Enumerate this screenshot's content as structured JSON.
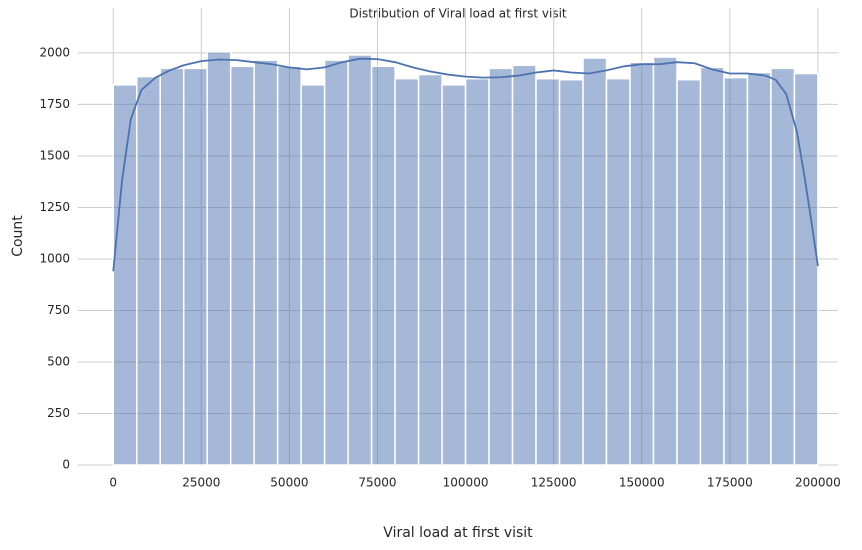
{
  "chart_data": {
    "type": "histogram",
    "title": "Distribution of Viral load at first visit",
    "x_label": "Viral load at first visit",
    "y_label": "Count",
    "bins": [
      0,
      6666.67,
      13333.33,
      20000,
      26666.67,
      33333.33,
      40000,
      46666.67,
      53333.33,
      60000,
      66666.67,
      73333.33,
      80000,
      86666.67,
      93333.33,
      100000,
      106666.67,
      113333.33,
      120000,
      126666.67,
      133333.33,
      140000,
      146666.67,
      153333.33,
      160000,
      166666.67,
      173333.33,
      180000,
      186666.67,
      193333.33,
      200000
    ],
    "values": [
      1845,
      1885,
      1925,
      1925,
      2005,
      1935,
      1965,
      1935,
      1845,
      1965,
      1990,
      1935,
      1875,
      1895,
      1845,
      1875,
      1925,
      1940,
      1875,
      1870,
      1975,
      1875,
      1955,
      1980,
      1870,
      1930,
      1880,
      1905,
      1925,
      1900
    ],
    "color": "#4c72b0",
    "bar_opacity": 0.5,
    "kde": {
      "color": "#4c72b0",
      "x": [
        0,
        2500,
        5000,
        8000,
        12000,
        16000,
        20000,
        25000,
        30000,
        35000,
        40000,
        45000,
        50000,
        55000,
        60000,
        65000,
        70000,
        75000,
        80000,
        85000,
        90000,
        95000,
        100000,
        105000,
        110000,
        115000,
        120000,
        125000,
        130000,
        135000,
        140000,
        145000,
        150000,
        155000,
        160000,
        165000,
        170000,
        175000,
        180000,
        185000,
        188000,
        191000,
        194000,
        196000,
        198000,
        200000
      ],
      "y": [
        940,
        1380,
        1680,
        1820,
        1880,
        1915,
        1940,
        1960,
        1968,
        1965,
        1955,
        1945,
        1930,
        1920,
        1930,
        1955,
        1972,
        1970,
        1955,
        1930,
        1910,
        1895,
        1885,
        1880,
        1882,
        1890,
        1905,
        1915,
        1905,
        1900,
        1915,
        1935,
        1945,
        1945,
        1955,
        1950,
        1920,
        1900,
        1900,
        1890,
        1870,
        1800,
        1620,
        1420,
        1200,
        965
      ]
    },
    "xlim": [
      -10000,
      205700
    ],
    "ylim": [
      0,
      2218
    ],
    "xticks": [
      0,
      25000,
      50000,
      75000,
      100000,
      125000,
      150000,
      175000,
      200000
    ],
    "yticks": [
      0,
      250,
      500,
      750,
      1000,
      1250,
      1500,
      1750,
      2000
    ],
    "grid": true
  }
}
